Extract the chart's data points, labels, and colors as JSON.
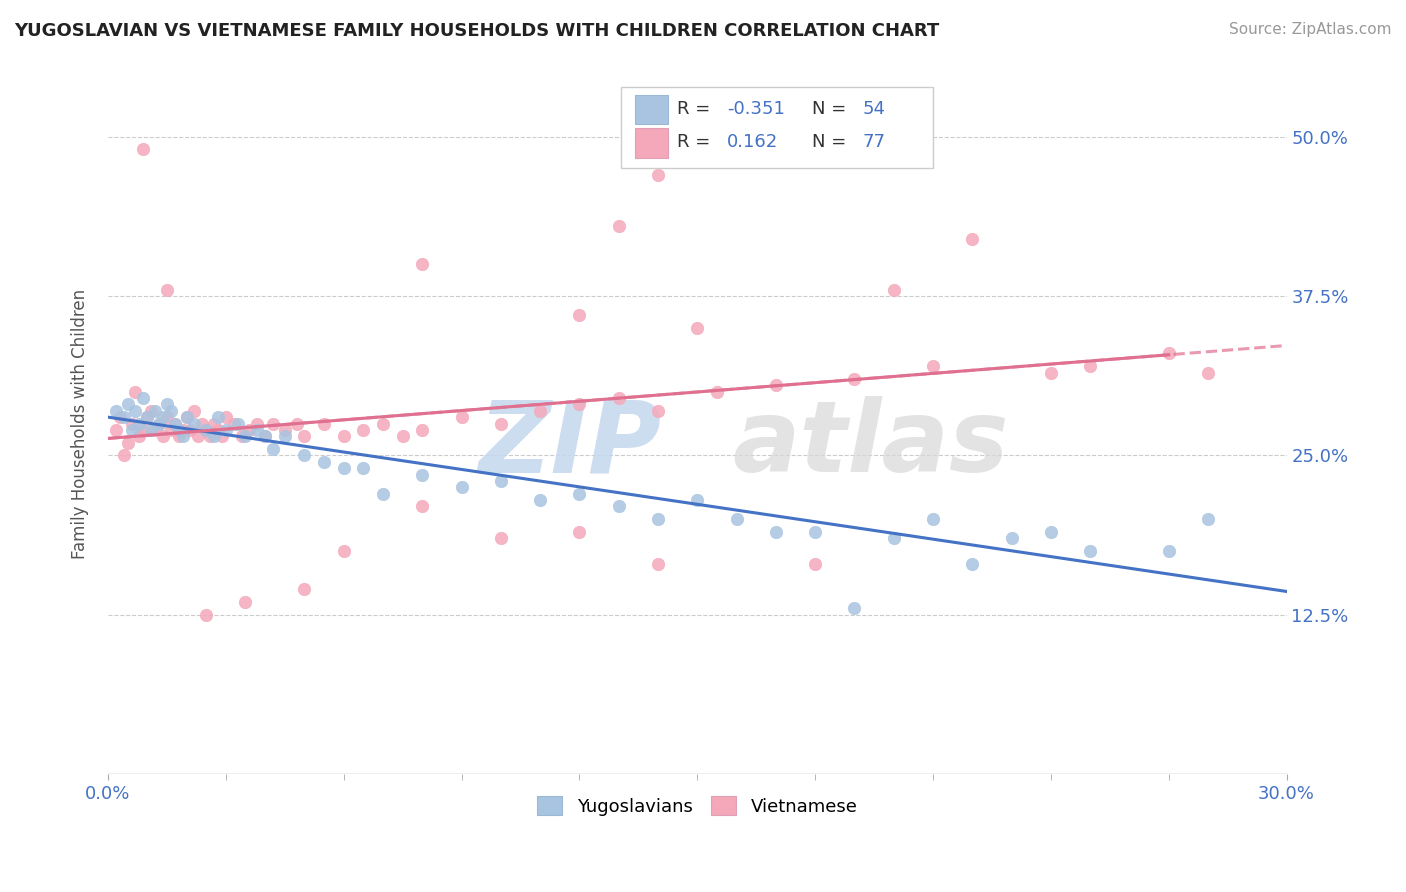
{
  "title": "YUGOSLAVIAN VS VIETNAMESE FAMILY HOUSEHOLDS WITH CHILDREN CORRELATION CHART",
  "source": "Source: ZipAtlas.com",
  "ylabel": "Family Households with Children",
  "xlim": [
    0.0,
    0.3
  ],
  "ylim": [
    0.0,
    0.55
  ],
  "color_blue": "#A8C4E0",
  "color_pink": "#F4A8BA",
  "color_blue_line": "#4472C4",
  "color_pink_line": "#E07090",
  "background_color": "#FFFFFF",
  "grid_color": "#CCCCCC",
  "yug_x": [
    0.002,
    0.004,
    0.005,
    0.006,
    0.007,
    0.008,
    0.009,
    0.01,
    0.011,
    0.012,
    0.013,
    0.014,
    0.015,
    0.016,
    0.017,
    0.018,
    0.019,
    0.02,
    0.022,
    0.025,
    0.027,
    0.028,
    0.03,
    0.033,
    0.035,
    0.038,
    0.04,
    0.042,
    0.045,
    0.05,
    0.055,
    0.06,
    0.065,
    0.07,
    0.08,
    0.09,
    0.1,
    0.11,
    0.12,
    0.13,
    0.14,
    0.15,
    0.16,
    0.17,
    0.18,
    0.19,
    0.2,
    0.21,
    0.22,
    0.23,
    0.24,
    0.25,
    0.27,
    0.28
  ],
  "yug_y": [
    0.285,
    0.28,
    0.29,
    0.27,
    0.285,
    0.275,
    0.295,
    0.28,
    0.27,
    0.285,
    0.275,
    0.28,
    0.29,
    0.285,
    0.275,
    0.27,
    0.265,
    0.28,
    0.275,
    0.27,
    0.265,
    0.28,
    0.27,
    0.275,
    0.265,
    0.27,
    0.265,
    0.255,
    0.265,
    0.25,
    0.245,
    0.24,
    0.24,
    0.22,
    0.235,
    0.225,
    0.23,
    0.215,
    0.22,
    0.21,
    0.2,
    0.215,
    0.2,
    0.19,
    0.19,
    0.13,
    0.185,
    0.2,
    0.165,
    0.185,
    0.19,
    0.175,
    0.175,
    0.2
  ],
  "viet_x": [
    0.002,
    0.003,
    0.004,
    0.005,
    0.006,
    0.007,
    0.008,
    0.009,
    0.01,
    0.011,
    0.012,
    0.013,
    0.014,
    0.015,
    0.016,
    0.017,
    0.018,
    0.019,
    0.02,
    0.021,
    0.022,
    0.023,
    0.024,
    0.025,
    0.026,
    0.027,
    0.028,
    0.029,
    0.03,
    0.032,
    0.034,
    0.036,
    0.038,
    0.04,
    0.042,
    0.045,
    0.048,
    0.05,
    0.055,
    0.06,
    0.065,
    0.07,
    0.075,
    0.08,
    0.09,
    0.1,
    0.11,
    0.12,
    0.13,
    0.14,
    0.155,
    0.17,
    0.19,
    0.21,
    0.24,
    0.25,
    0.27,
    0.28,
    0.2,
    0.22,
    0.12,
    0.13,
    0.14,
    0.15,
    0.18,
    0.08,
    0.05,
    0.035,
    0.025,
    0.015,
    0.009,
    0.06,
    0.08,
    0.1,
    0.12,
    0.14
  ],
  "viet_y": [
    0.27,
    0.28,
    0.25,
    0.26,
    0.275,
    0.3,
    0.265,
    0.27,
    0.28,
    0.285,
    0.27,
    0.275,
    0.265,
    0.28,
    0.27,
    0.275,
    0.265,
    0.27,
    0.28,
    0.27,
    0.285,
    0.265,
    0.275,
    0.27,
    0.265,
    0.275,
    0.27,
    0.265,
    0.28,
    0.275,
    0.265,
    0.27,
    0.275,
    0.265,
    0.275,
    0.27,
    0.275,
    0.265,
    0.275,
    0.265,
    0.27,
    0.275,
    0.265,
    0.27,
    0.28,
    0.275,
    0.285,
    0.29,
    0.295,
    0.285,
    0.3,
    0.305,
    0.31,
    0.32,
    0.315,
    0.32,
    0.33,
    0.315,
    0.38,
    0.42,
    0.36,
    0.43,
    0.47,
    0.35,
    0.165,
    0.21,
    0.145,
    0.135,
    0.125,
    0.38,
    0.49,
    0.175,
    0.4,
    0.185,
    0.19,
    0.165
  ]
}
